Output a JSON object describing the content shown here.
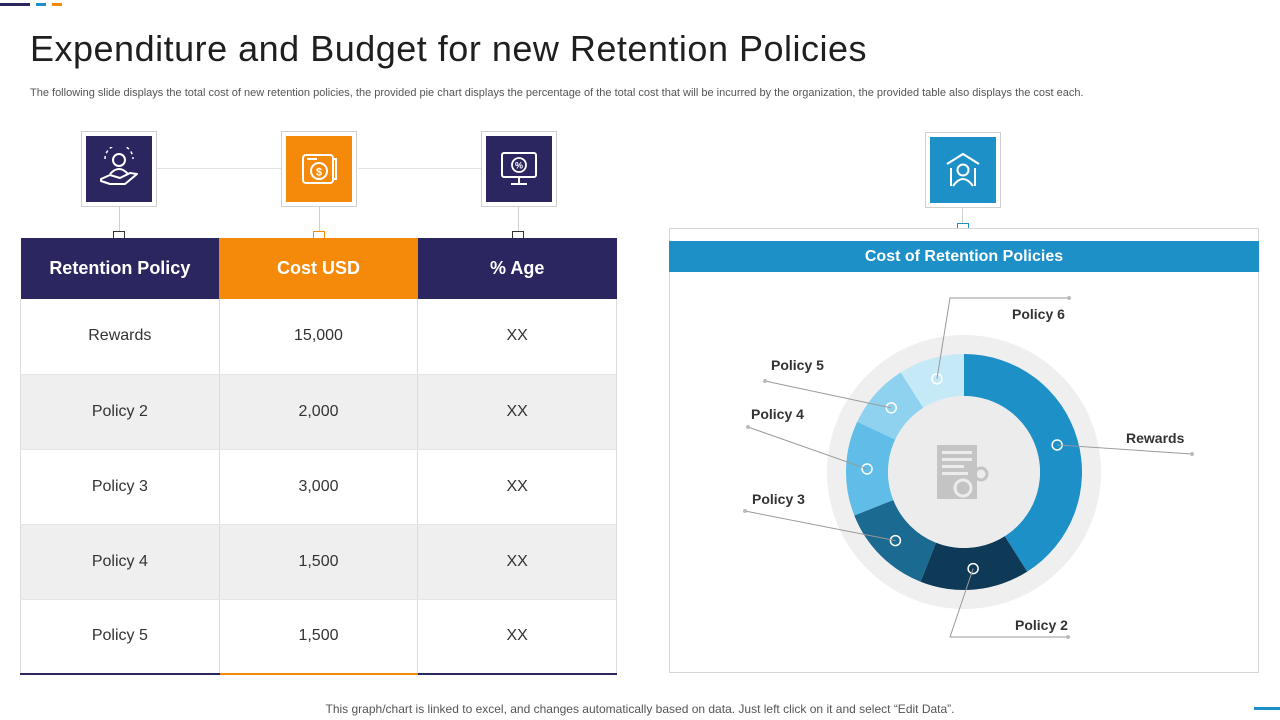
{
  "header": {
    "title": "Expenditure and Budget for new Retention Policies",
    "subtitle": "The following slide displays the total cost of new retention policies, the provided pie chart displays the percentage of the total cost that will be incurred by the organization, the provided table also displays the cost each."
  },
  "table": {
    "columns": [
      "Retention Policy",
      "Cost USD",
      "% Age"
    ],
    "rows": [
      [
        "Rewards",
        "15,000",
        "XX"
      ],
      [
        "Policy 2",
        "2,000",
        "XX"
      ],
      [
        "Policy 3",
        "3,000",
        "XX"
      ],
      [
        "Policy 4",
        "1,500",
        "XX"
      ],
      [
        "Policy 5",
        "1,500",
        "XX"
      ]
    ]
  },
  "icons": {
    "col1": "hand-user-icon",
    "col2": "money-scroll-icon",
    "col3": "monitor-percent-icon",
    "chart": "protected-user-icon",
    "center": "document-gear-icon"
  },
  "colors": {
    "navy": "#2b2560",
    "orange": "#f5890a",
    "blue": "#1e90c8"
  },
  "chart_data": {
    "type": "pie",
    "title": "Cost of Retention Policies",
    "categories": [
      "Rewards",
      "Policy 2",
      "Policy 3",
      "Policy 4",
      "Policy 5",
      "Policy 6"
    ],
    "values": [
      41,
      15,
      13,
      13,
      9,
      9
    ],
    "colors": [
      "#1e90c8",
      "#0f3a57",
      "#1a6a91",
      "#5fbde8",
      "#8fd2f0",
      "#c6e9f8"
    ]
  },
  "footer": {
    "note": "This graph/chart is linked to excel,  and changes automatically based on data. Just left click on it and select “Edit Data”."
  }
}
